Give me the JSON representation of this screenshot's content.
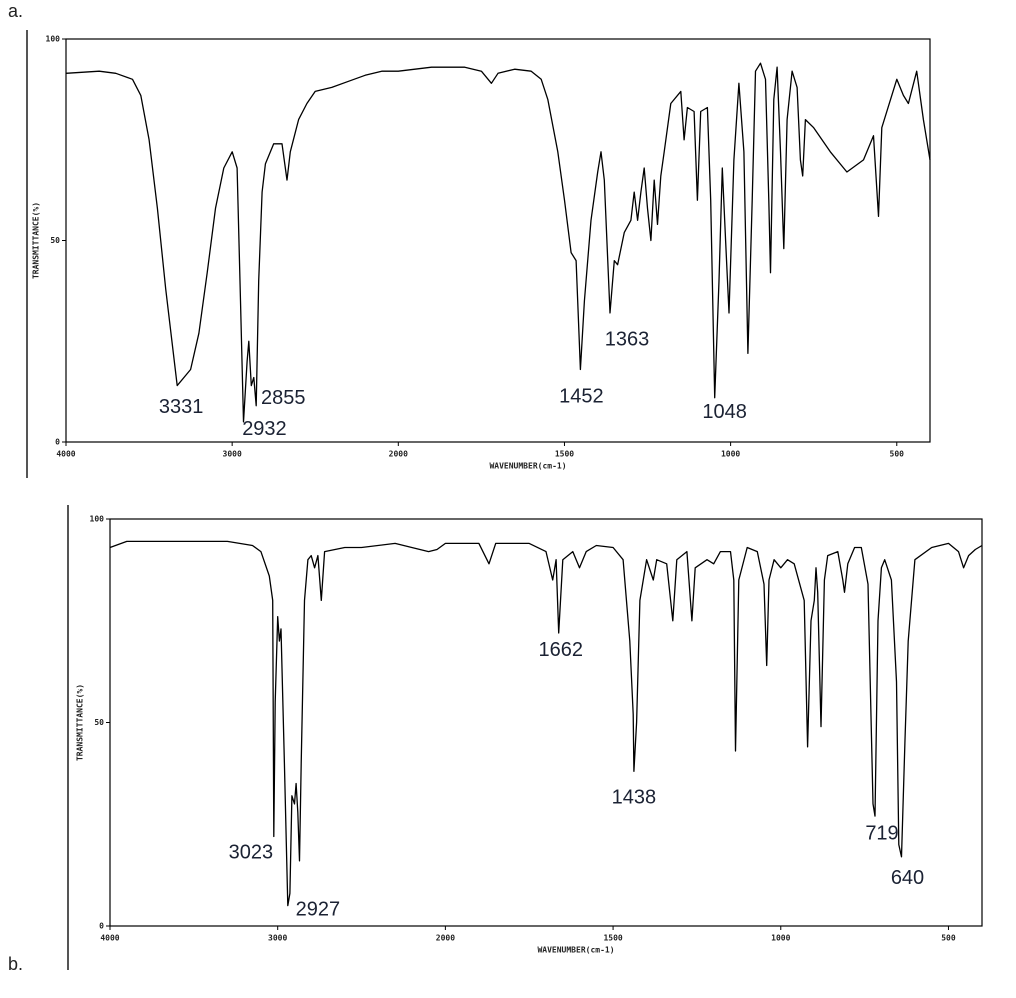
{
  "chart_data": [
    {
      "type": "line",
      "label": "a.",
      "x_label": "WAVENUMBER(cm-1)",
      "y_label": "TRANSMITTANCE(%)",
      "color": "#000000",
      "xlim": [
        4000,
        400
      ],
      "xticks": [
        4000,
        3000,
        2000,
        1500,
        1000,
        500
      ],
      "ylim": [
        0,
        100
      ],
      "yticks": [
        0,
        50,
        100
      ],
      "x": [
        4000,
        3800,
        3700,
        3600,
        3550,
        3500,
        3450,
        3400,
        3331,
        3250,
        3200,
        3150,
        3100,
        3050,
        3000,
        2970,
        2950,
        2932,
        2910,
        2900,
        2885,
        2870,
        2855,
        2840,
        2820,
        2800,
        2750,
        2700,
        2670,
        2650,
        2600,
        2550,
        2500,
        2400,
        2300,
        2200,
        2100,
        2000,
        1900,
        1800,
        1750,
        1720,
        1700,
        1650,
        1600,
        1570,
        1550,
        1520,
        1500,
        1480,
        1465,
        1452,
        1440,
        1420,
        1400,
        1390,
        1380,
        1363,
        1350,
        1340,
        1320,
        1300,
        1290,
        1280,
        1270,
        1260,
        1250,
        1240,
        1230,
        1220,
        1210,
        1200,
        1180,
        1150,
        1140,
        1130,
        1110,
        1100,
        1090,
        1070,
        1060,
        1048,
        1035,
        1025,
        1015,
        1005,
        990,
        975,
        960,
        948,
        935,
        925,
        910,
        895,
        885,
        880,
        870,
        860,
        850,
        840,
        830,
        815,
        800,
        790,
        783,
        775,
        750,
        700,
        650,
        600,
        570,
        555,
        545,
        500,
        480,
        465,
        440,
        420,
        400
      ],
      "values": [
        91.5,
        92,
        91.5,
        90,
        86,
        75,
        58,
        38,
        14,
        18,
        27,
        42,
        58,
        68,
        72,
        68,
        35,
        5,
        20,
        25,
        14,
        16,
        9,
        40,
        62,
        69,
        74,
        74,
        65,
        72,
        80,
        84,
        87,
        88,
        89.5,
        91,
        92,
        92,
        93,
        93,
        92,
        89,
        91.5,
        92.5,
        92,
        90,
        85,
        72,
        60,
        47,
        45,
        18,
        35,
        55,
        67,
        72,
        65,
        32,
        45,
        44,
        52,
        55,
        62,
        55,
        62,
        68,
        58,
        50,
        65,
        54,
        66,
        72,
        84,
        87,
        75,
        83,
        82,
        60,
        82,
        83,
        60,
        11,
        40,
        68,
        50,
        32,
        70,
        89,
        72,
        22,
        60,
        92,
        94,
        90,
        60,
        42,
        85,
        93,
        72,
        48,
        80,
        92,
        88,
        70,
        66,
        80,
        78,
        72,
        67,
        70,
        76,
        56,
        78,
        90,
        86,
        84,
        92,
        80,
        70
      ],
      "peaks": [
        {
          "x": 3331,
          "y": 14
        },
        {
          "x": 2932,
          "y": 5
        },
        {
          "x": 2855,
          "y": 9
        },
        {
          "x": 1452,
          "y": 18
        },
        {
          "x": 1363,
          "y": 32
        },
        {
          "x": 1048,
          "y": 11
        }
      ]
    },
    {
      "type": "line",
      "label": "b.",
      "x_label": "WAVENUMBER(cm-1)",
      "y_label": "TRANSMITTANCE(%)",
      "color": "#000000",
      "xlim": [
        4000,
        400
      ],
      "xticks": [
        4000,
        3000,
        2000,
        1500,
        1000,
        500
      ],
      "ylim": [
        0,
        100
      ],
      "yticks": [
        0,
        50,
        100
      ],
      "x": [
        4000,
        3900,
        3600,
        3300,
        3150,
        3100,
        3050,
        3030,
        3023,
        3015,
        3000,
        2990,
        2980,
        2960,
        2940,
        2927,
        2915,
        2900,
        2890,
        2880,
        2870,
        2860,
        2840,
        2820,
        2800,
        2780,
        2760,
        2740,
        2720,
        2600,
        2500,
        2300,
        2200,
        2100,
        2050,
        2000,
        1900,
        1870,
        1850,
        1750,
        1700,
        1680,
        1670,
        1662,
        1650,
        1620,
        1600,
        1580,
        1550,
        1500,
        1470,
        1450,
        1440,
        1438,
        1430,
        1420,
        1400,
        1380,
        1370,
        1340,
        1322,
        1310,
        1280,
        1265,
        1255,
        1220,
        1200,
        1180,
        1150,
        1140,
        1135,
        1125,
        1100,
        1070,
        1050,
        1042,
        1035,
        1020,
        1000,
        980,
        960,
        930,
        920,
        910,
        900,
        895,
        890,
        880,
        870,
        860,
        830,
        815,
        810,
        800,
        780,
        760,
        740,
        725,
        719,
        710,
        700,
        690,
        670,
        655,
        648,
        640,
        630,
        620,
        600,
        550,
        500,
        470,
        455,
        440,
        420,
        400
      ],
      "values": [
        93,
        94.5,
        94.5,
        94.5,
        93.5,
        92,
        86,
        80,
        22,
        55,
        76,
        70,
        73,
        40,
        5,
        8,
        32,
        30,
        35,
        28,
        16,
        40,
        80,
        90,
        91,
        88,
        91,
        80,
        92,
        93,
        93,
        94,
        93,
        92,
        92.5,
        94,
        94,
        89,
        94,
        94,
        92,
        85,
        90,
        72,
        90,
        92,
        88,
        92,
        93.5,
        93,
        90,
        70,
        52,
        38,
        50,
        80,
        90,
        85,
        90,
        89,
        75,
        90,
        92,
        75,
        88,
        90,
        89,
        92,
        92,
        85,
        43,
        85,
        93,
        92,
        84,
        64,
        85,
        90,
        88,
        90,
        89,
        80,
        44,
        75,
        80,
        88,
        82,
        49,
        85,
        91,
        92,
        85,
        82,
        89,
        93,
        93,
        84,
        30,
        27,
        75,
        88,
        90,
        85,
        60,
        20,
        17,
        45,
        70,
        90,
        93,
        94,
        92,
        88,
        91,
        92.5,
        93.5
      ],
      "peaks": [
        {
          "x": 3023,
          "y": 22
        },
        {
          "x": 2927,
          "y": 8
        },
        {
          "x": 1662,
          "y": 72
        },
        {
          "x": 1438,
          "y": 38
        },
        {
          "x": 719,
          "y": 27
        },
        {
          "x": 640,
          "y": 17
        }
      ]
    }
  ]
}
